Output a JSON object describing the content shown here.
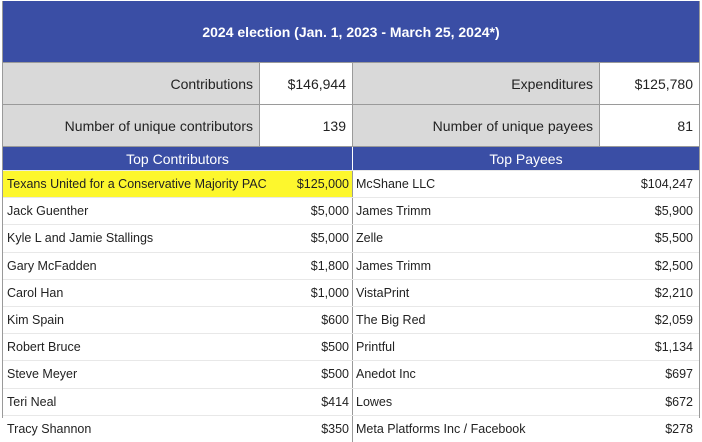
{
  "title": "2024 election (Jan. 1, 2023 - March 25, 2024*)",
  "summary": {
    "contributions_label": "Contributions",
    "contributions_value": "$146,944",
    "expenditures_label": "Expenditures",
    "expenditures_value": "$125,780",
    "contributors_label": "Number of unique contributors",
    "contributors_value": "139",
    "payees_label": "Number of unique payees",
    "payees_value": "81"
  },
  "headers": {
    "contributors": "Top Contributors",
    "payees": "Top Payees"
  },
  "highlight_color": "#fdf72d",
  "rows": [
    {
      "contributor": "Texans United for a Conservative Majority PAC",
      "contribution": "$125,000",
      "payee": "McShane LLC",
      "payment": "$104,247"
    },
    {
      "contributor": "Jack Guenther",
      "contribution": "$5,000",
      "payee": "James Trimm",
      "payment": "$5,900"
    },
    {
      "contributor": "Kyle L and Jamie Stallings",
      "contribution": "$5,000",
      "payee": "Zelle",
      "payment": "$5,500"
    },
    {
      "contributor": "Gary McFadden",
      "contribution": "$1,800",
      "payee": "James Trimm",
      "payment": "$2,500"
    },
    {
      "contributor": "Carol Han",
      "contribution": "$1,000",
      "payee": "VistaPrint",
      "payment": "$2,210"
    },
    {
      "contributor": "Kim Spain",
      "contribution": "$600",
      "payee": "The Big Red",
      "payment": "$2,059"
    },
    {
      "contributor": "Robert Bruce",
      "contribution": "$500",
      "payee": "Printful",
      "payment": "$1,134"
    },
    {
      "contributor": "Steve Meyer",
      "contribution": "$500",
      "payee": "Anedot Inc",
      "payment": "$697"
    },
    {
      "contributor": "Teri Neal",
      "contribution": "$414",
      "payee": "Lowes",
      "payment": "$672"
    },
    {
      "contributor": "Tracy Shannon",
      "contribution": "$350",
      "payee": "Meta Platforms Inc / Facebook",
      "payment": "$278"
    }
  ]
}
